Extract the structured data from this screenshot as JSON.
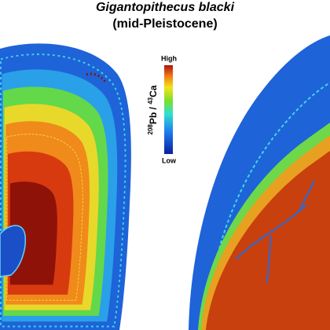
{
  "title": "Gigantopithecus blacki",
  "subtitle": "(mid-Pleistocene)",
  "colorbar": {
    "high": "High",
    "low": "Low",
    "label": {
      "sup1": "208",
      "base1": "Pb / ",
      "sup2": "43",
      "base2": "Ca"
    }
  }
}
